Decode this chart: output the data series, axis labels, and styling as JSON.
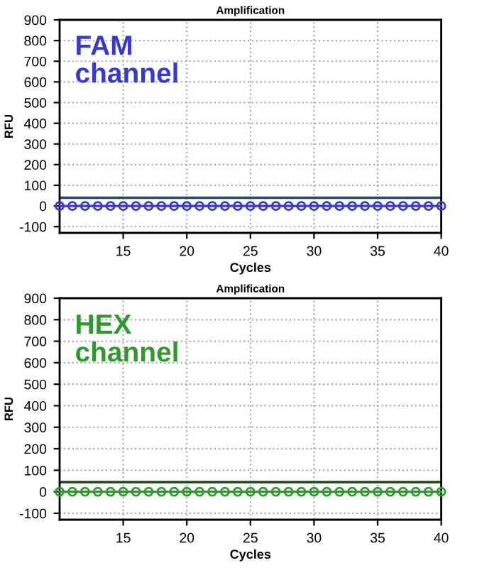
{
  "chart_data": [
    {
      "type": "line",
      "title": "Amplification",
      "xlabel": "Cycles",
      "ylabel": "RFU",
      "annotations": [
        "FAM channel"
      ],
      "x": [
        10,
        11,
        12,
        13,
        14,
        15,
        16,
        17,
        18,
        19,
        20,
        21,
        22,
        23,
        24,
        25,
        26,
        27,
        28,
        29,
        30,
        31,
        32,
        33,
        34,
        35,
        36,
        37,
        38,
        39,
        40
      ],
      "series": [
        {
          "color": "#3a3ac8",
          "values": [
            0,
            0,
            0,
            0,
            0,
            0,
            0,
            0,
            0,
            0,
            0,
            0,
            0,
            0,
            0,
            0,
            0,
            0,
            0,
            0,
            0,
            0,
            0,
            0,
            0,
            0,
            0,
            0,
            0,
            0,
            0
          ]
        }
      ],
      "ref_lines": [
        {
          "axis": "y",
          "value": 40,
          "color": "#1f4a6a"
        }
      ],
      "xlim": [
        10,
        40
      ],
      "xticks": [
        15,
        20,
        25,
        30,
        35,
        40
      ],
      "ylim": [
        -130,
        900
      ],
      "yticks": [
        -100,
        0,
        100,
        200,
        300,
        400,
        500,
        600,
        700,
        800,
        900
      ],
      "grid": true,
      "marker": "circle",
      "line_style": "solid"
    },
    {
      "type": "line",
      "title": "Amplification",
      "xlabel": "Cycles",
      "ylabel": "RFU",
      "annotations": [
        "HEX channel"
      ],
      "x": [
        10,
        11,
        12,
        13,
        14,
        15,
        16,
        17,
        18,
        19,
        20,
        21,
        22,
        23,
        24,
        25,
        26,
        27,
        28,
        29,
        30,
        31,
        32,
        33,
        34,
        35,
        36,
        37,
        38,
        39,
        40
      ],
      "series": [
        {
          "color": "#2e9a2e",
          "values": [
            0,
            0,
            0,
            0,
            0,
            0,
            0,
            0,
            0,
            0,
            0,
            0,
            0,
            0,
            0,
            0,
            0,
            0,
            0,
            0,
            0,
            0,
            0,
            0,
            0,
            0,
            0,
            0,
            0,
            0,
            0
          ]
        }
      ],
      "ref_lines": [
        {
          "axis": "y",
          "value": 45,
          "color": "#1a4a1a"
        }
      ],
      "xlim": [
        10,
        40
      ],
      "xticks": [
        15,
        20,
        25,
        30,
        35,
        40
      ],
      "ylim": [
        -130,
        900
      ],
      "yticks": [
        -100,
        0,
        100,
        200,
        300,
        400,
        500,
        600,
        700,
        800,
        900
      ],
      "grid": true,
      "marker": "circle",
      "line_style": "solid"
    }
  ]
}
